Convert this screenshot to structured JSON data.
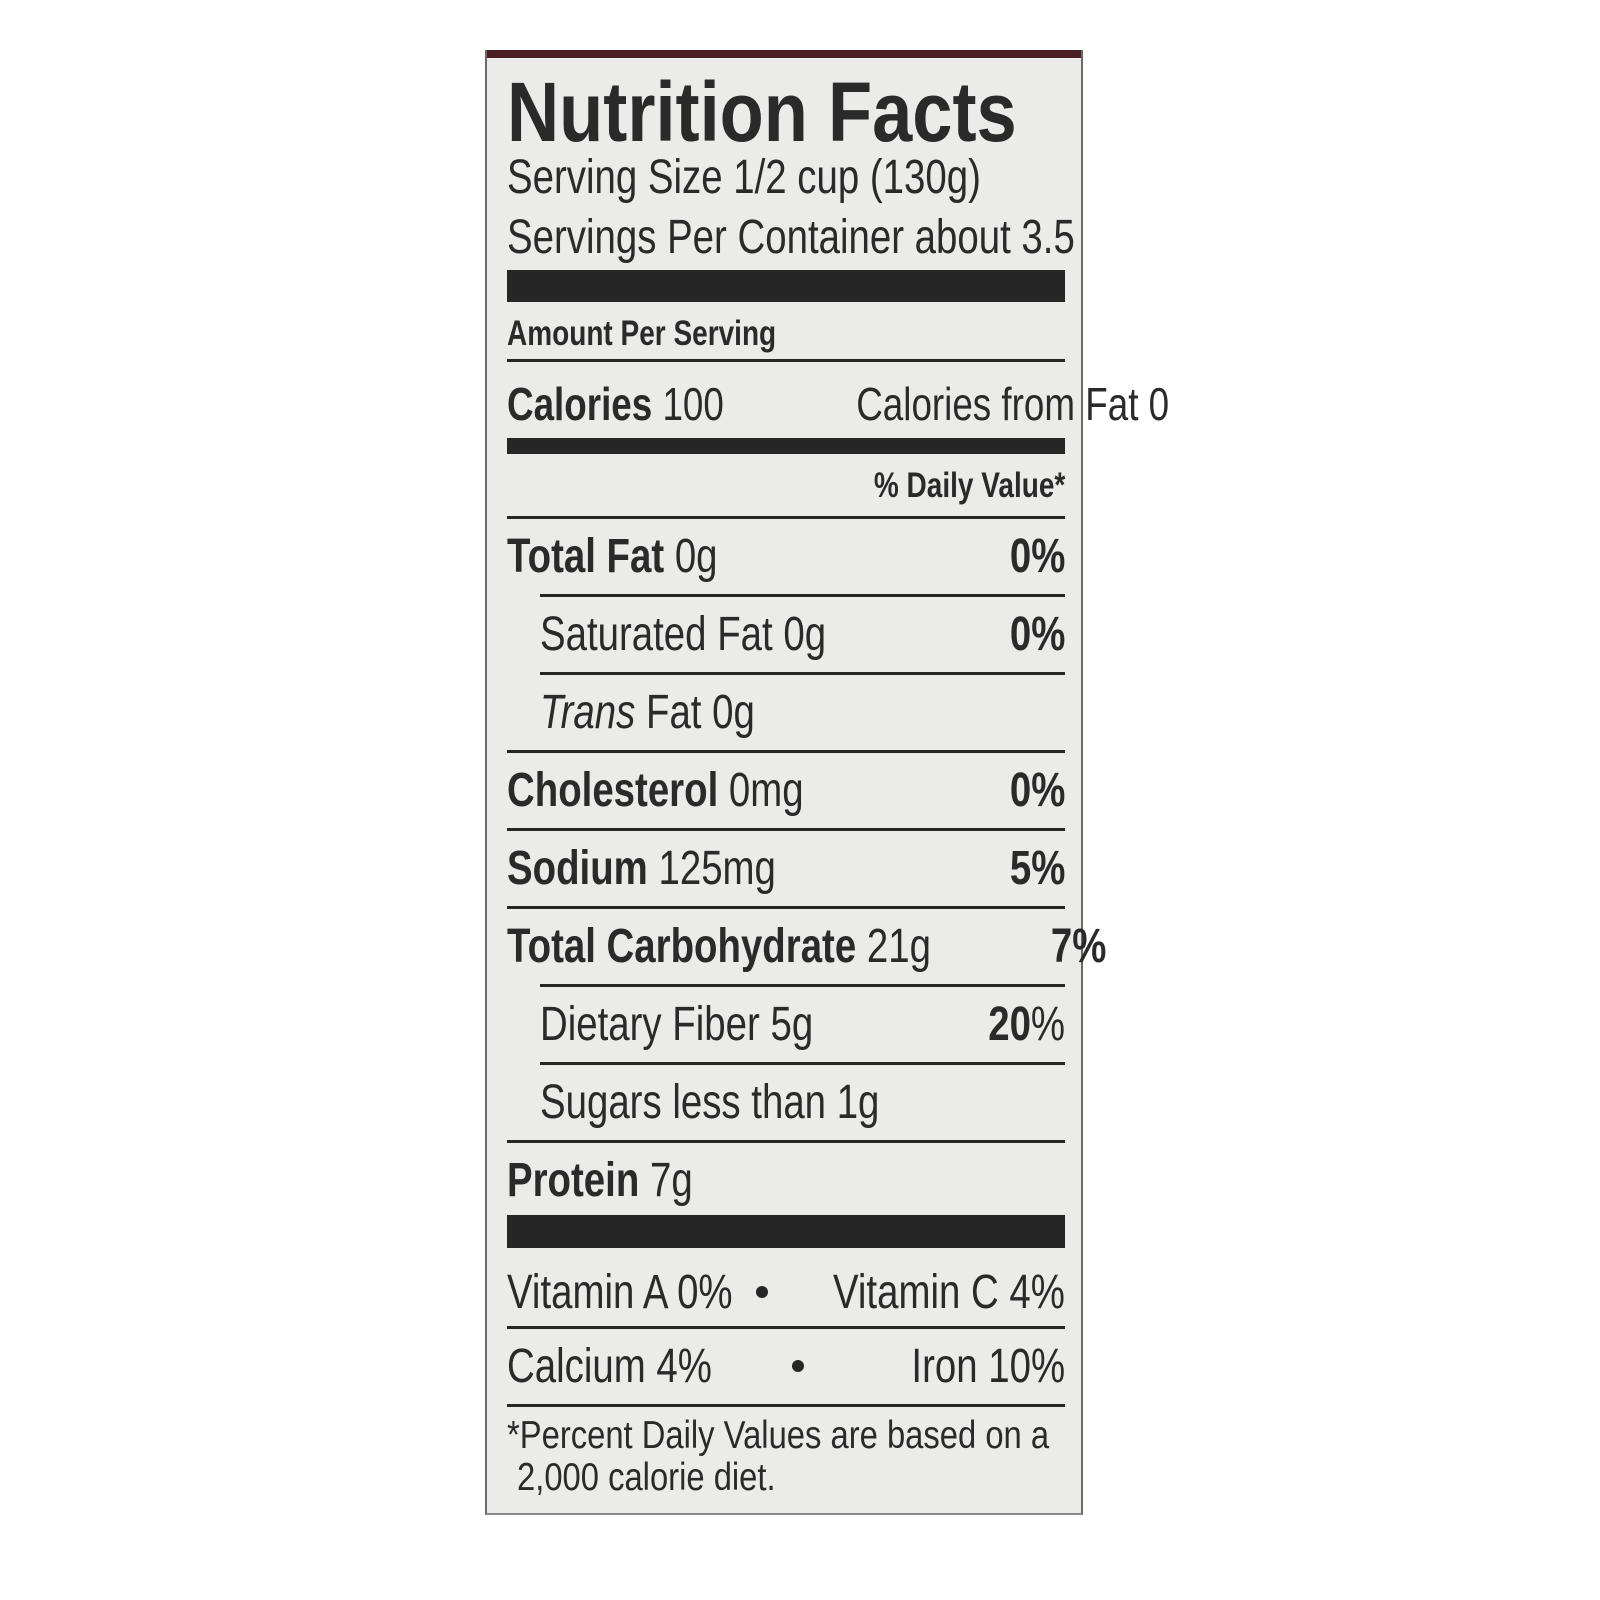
{
  "title": "Nutrition Facts",
  "serving_size": "Serving Size 1/2 cup (130g)",
  "servings_per_container": "Servings Per Container about 3.5",
  "amount_per_serving": "Amount Per Serving",
  "calories": {
    "label": "Calories",
    "value": "100",
    "from_fat": "Calories from Fat 0"
  },
  "daily_value_header": "% Daily Value*",
  "nutrients": [
    {
      "label": "Total Fat",
      "amount": "0g",
      "dv": "0%"
    },
    {
      "label": "Saturated Fat",
      "amount": "0g",
      "dv": "0%"
    },
    {
      "label": "Trans",
      "label_rest": "Fat 0g"
    },
    {
      "label": "Cholesterol",
      "amount": "0mg",
      "dv": "0%"
    },
    {
      "label": "Sodium",
      "amount": "125mg",
      "dv": "5%"
    },
    {
      "label": "Total Carbohydrate",
      "amount": "21g",
      "dv": "7%"
    },
    {
      "label": "Dietary Fiber",
      "amount": "5g",
      "dv": "20",
      "dv_unit": "%"
    },
    {
      "label": "Sugars less than 1g"
    },
    {
      "label": "Protein",
      "amount": "7g"
    }
  ],
  "vitamins": [
    {
      "left": "Vitamin A 0%",
      "right": "Vitamin C 4%"
    },
    {
      "left": "Calcium 4%",
      "right": "Iron 10%"
    }
  ],
  "footnote": [
    "*Percent Daily Values are based on a",
    "2,000 calorie diet."
  ],
  "colors": {
    "ink": "#262626",
    "background": "#ebecea",
    "top_band": "#4a1e22"
  }
}
